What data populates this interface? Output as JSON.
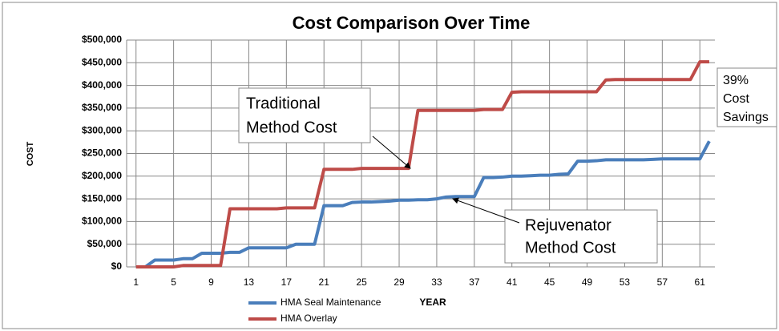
{
  "chart_data": {
    "type": "line",
    "title": "Cost Comparison  Over Time",
    "xlabel": "YEAR",
    "ylabel": "COST",
    "x": [
      1,
      2,
      3,
      4,
      5,
      6,
      7,
      8,
      9,
      10,
      11,
      12,
      13,
      14,
      15,
      16,
      17,
      18,
      19,
      20,
      21,
      22,
      23,
      24,
      25,
      26,
      27,
      28,
      29,
      30,
      31,
      32,
      33,
      34,
      35,
      36,
      37,
      38,
      39,
      40,
      41,
      42,
      43,
      44,
      45,
      46,
      47,
      48,
      49,
      50,
      51,
      52,
      53,
      54,
      55,
      56,
      57,
      58,
      59,
      60,
      61,
      62
    ],
    "xlim": [
      0,
      62.6
    ],
    "xticks": [
      1,
      5,
      9,
      13,
      17,
      21,
      25,
      29,
      33,
      37,
      41,
      45,
      49,
      53,
      57,
      61
    ],
    "ylim": [
      0,
      500000
    ],
    "yticks": [
      {
        "value": 0,
        "label": "$0"
      },
      {
        "value": 50000,
        "label": "$50,000"
      },
      {
        "value": 100000,
        "label": "$100,000"
      },
      {
        "value": 150000,
        "label": "$150,000"
      },
      {
        "value": 200000,
        "label": "$200,000"
      },
      {
        "value": 250000,
        "label": "$250,000"
      },
      {
        "value": 300000,
        "label": "$300,000"
      },
      {
        "value": 350000,
        "label": "$350,000"
      },
      {
        "value": 400000,
        "label": "$400,000"
      },
      {
        "value": 450000,
        "label": "$450,000"
      },
      {
        "value": 500000,
        "label": "$500,000"
      }
    ],
    "grid": true,
    "legend": "bottom",
    "series": [
      {
        "name": "HMA Seal Maintenance",
        "color": "#4a7ebb",
        "values": [
          0,
          0,
          15000,
          15000,
          15000,
          18000,
          18000,
          30000,
          30000,
          30000,
          32000,
          32000,
          42000,
          42000,
          42000,
          42000,
          42000,
          50000,
          50000,
          50000,
          135000,
          135000,
          135000,
          142000,
          143000,
          143000,
          144000,
          145000,
          147000,
          147000,
          148000,
          148000,
          150000,
          154000,
          155000,
          155000,
          155000,
          197000,
          197000,
          198000,
          200000,
          200000,
          201000,
          202000,
          202000,
          204000,
          205000,
          233000,
          233000,
          234000,
          236000,
          236000,
          236000,
          236000,
          236000,
          237000,
          238000,
          238000,
          238000,
          238000,
          238000,
          277000
        ]
      },
      {
        "name": "HMA Overlay",
        "color": "#be4b48",
        "values": [
          0,
          0,
          0,
          0,
          0,
          3000,
          3000,
          3000,
          3000,
          3000,
          128000,
          128000,
          128000,
          128000,
          128000,
          128000,
          130000,
          130000,
          130000,
          130000,
          215000,
          215000,
          215000,
          215000,
          217000,
          217000,
          217000,
          217000,
          217000,
          217000,
          345000,
          345000,
          345000,
          345000,
          345000,
          345000,
          345000,
          347000,
          347000,
          347000,
          385000,
          386000,
          386000,
          386000,
          386000,
          386000,
          386000,
          386000,
          386000,
          386000,
          412000,
          413000,
          413000,
          413000,
          413000,
          413000,
          413000,
          413000,
          413000,
          413000,
          452000,
          452000
        ]
      }
    ],
    "annotations": [
      {
        "lines": [
          "Traditional",
          "Method Cost"
        ]
      },
      {
        "lines": [
          "Rejuvenator",
          "Method Cost"
        ]
      },
      {
        "lines": [
          "39%",
          "Cost",
          "Savings"
        ]
      }
    ]
  }
}
